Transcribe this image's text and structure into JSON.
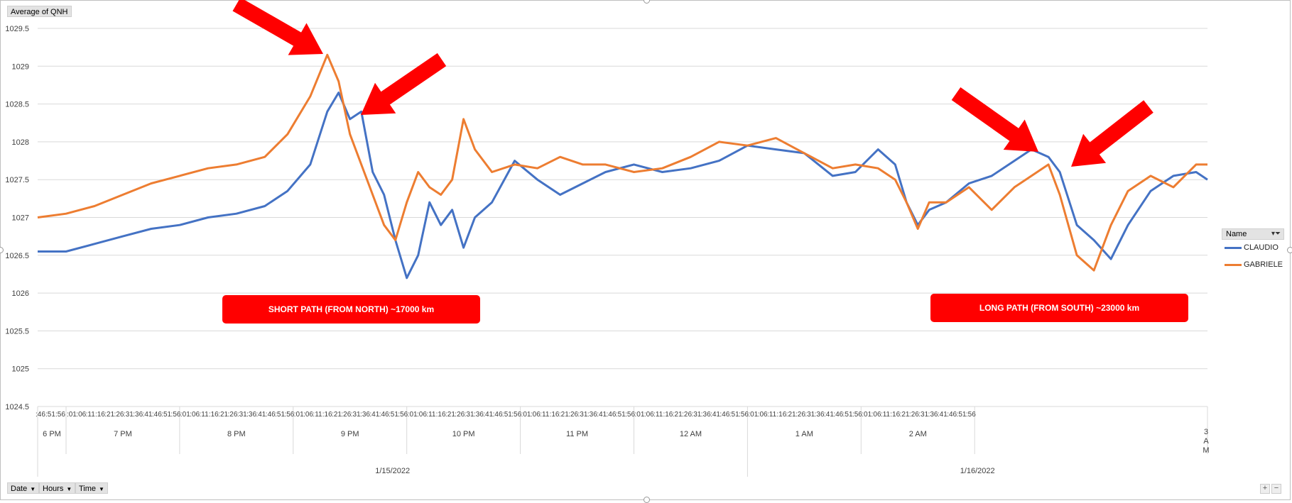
{
  "pivot_buttons": {
    "value_field": "Average of QNH",
    "axis_fields": [
      "Date",
      "Hours",
      "Time"
    ],
    "legend_field": "Name"
  },
  "annotations": {
    "short_path": "SHORT PATH (FROM NORTH) ~17000 km",
    "long_path": "LONG PATH (FROM SOUTH) ~23000 km"
  },
  "colors": {
    "claudio": "#4472c4",
    "gabriele": "#ed7d31",
    "annotation": "#ff0000",
    "gridline": "#d9d9d9"
  },
  "icons": {
    "filter": "funnel-icon",
    "dropdown": "dropdown-arrow-icon"
  },
  "chart_data": {
    "type": "line",
    "title": "",
    "xlabel": "",
    "ylabel": "",
    "ylim": [
      1024.5,
      1029.5
    ],
    "yticks": [
      "1029.5",
      "1029",
      "1028.5",
      "1028",
      "1027.5",
      "1027",
      "1026.5",
      "1026",
      "1025.5",
      "1025",
      "1024.5"
    ],
    "grid": true,
    "legend_position": "right",
    "x_levels": {
      "dates": [
        "1/15/2022",
        "1/16/2022"
      ],
      "hours": [
        "6 PM",
        "7 PM",
        "8 PM",
        "9 PM",
        "10 PM",
        "11 PM",
        "12 AM",
        "1 AM",
        "2 AM",
        "3 AM"
      ],
      "minute_ticks": [
        ":01",
        ":06",
        ":11",
        ":16",
        ":21",
        ":26",
        ":31",
        ":36",
        ":41",
        ":46",
        ":51",
        ":56"
      ],
      "first_hour_ticks": [
        ":46",
        ":51",
        ":56"
      ]
    },
    "x_unit": "hours since 6:45 PM 1/15/2022",
    "series": [
      {
        "name": "CLAUDIO",
        "x": [
          0,
          0.25,
          0.5,
          0.75,
          1.0,
          1.25,
          1.5,
          1.75,
          2.0,
          2.2,
          2.4,
          2.55,
          2.65,
          2.75,
          2.85,
          2.95,
          3.05,
          3.15,
          3.25,
          3.35,
          3.45,
          3.55,
          3.65,
          3.75,
          3.85,
          4.0,
          4.2,
          4.4,
          4.6,
          4.8,
          5.0,
          5.25,
          5.5,
          5.75,
          6.0,
          6.25,
          6.5,
          6.75,
          7.0,
          7.2,
          7.4,
          7.55,
          7.65,
          7.75,
          7.85,
          8.0,
          8.2,
          8.4,
          8.6,
          8.75,
          8.9,
          9.0,
          9.15,
          9.3,
          9.45,
          9.6,
          9.8,
          10.0,
          10.2,
          10.3
        ],
        "values": [
          1026.55,
          1026.55,
          1026.65,
          1026.75,
          1026.85,
          1026.9,
          1027.0,
          1027.05,
          1027.15,
          1027.35,
          1027.7,
          1028.4,
          1028.65,
          1028.3,
          1028.4,
          1027.6,
          1027.3,
          1026.7,
          1026.2,
          1026.5,
          1027.2,
          1026.9,
          1027.1,
          1026.6,
          1027.0,
          1027.2,
          1027.75,
          1027.5,
          1027.3,
          1027.45,
          1027.6,
          1027.7,
          1027.6,
          1027.65,
          1027.75,
          1027.95,
          1027.9,
          1027.85,
          1027.55,
          1027.6,
          1027.9,
          1027.7,
          1027.2,
          1026.9,
          1027.1,
          1027.2,
          1027.45,
          1027.55,
          1027.75,
          1027.9,
          1027.8,
          1027.6,
          1026.9,
          1026.7,
          1026.45,
          1026.9,
          1027.35,
          1027.55,
          1027.6,
          1027.5
        ]
      },
      {
        "name": "GABRIELE",
        "x": [
          0,
          0.25,
          0.5,
          0.75,
          1.0,
          1.25,
          1.5,
          1.75,
          2.0,
          2.2,
          2.4,
          2.55,
          2.65,
          2.75,
          2.85,
          2.95,
          3.05,
          3.15,
          3.25,
          3.35,
          3.45,
          3.55,
          3.65,
          3.75,
          3.85,
          4.0,
          4.2,
          4.4,
          4.6,
          4.8,
          5.0,
          5.25,
          5.5,
          5.75,
          6.0,
          6.25,
          6.5,
          6.75,
          7.0,
          7.2,
          7.4,
          7.55,
          7.65,
          7.75,
          7.85,
          8.0,
          8.2,
          8.4,
          8.6,
          8.75,
          8.9,
          9.0,
          9.15,
          9.3,
          9.45,
          9.6,
          9.8,
          10.0,
          10.2,
          10.3
        ],
        "values": [
          1027.0,
          1027.05,
          1027.15,
          1027.3,
          1027.45,
          1027.55,
          1027.65,
          1027.7,
          1027.8,
          1028.1,
          1028.6,
          1029.15,
          1028.8,
          1028.1,
          1027.7,
          1027.3,
          1026.9,
          1026.7,
          1027.2,
          1027.6,
          1027.4,
          1027.3,
          1027.5,
          1028.3,
          1027.9,
          1027.6,
          1027.7,
          1027.65,
          1027.8,
          1027.7,
          1027.7,
          1027.6,
          1027.65,
          1027.8,
          1028.0,
          1027.95,
          1028.05,
          1027.85,
          1027.65,
          1027.7,
          1027.65,
          1027.5,
          1027.2,
          1026.85,
          1027.2,
          1027.2,
          1027.4,
          1027.1,
          1027.4,
          1027.55,
          1027.7,
          1027.3,
          1026.5,
          1026.3,
          1026.9,
          1027.35,
          1027.55,
          1027.4,
          1027.7,
          1027.7
        ]
      }
    ]
  }
}
